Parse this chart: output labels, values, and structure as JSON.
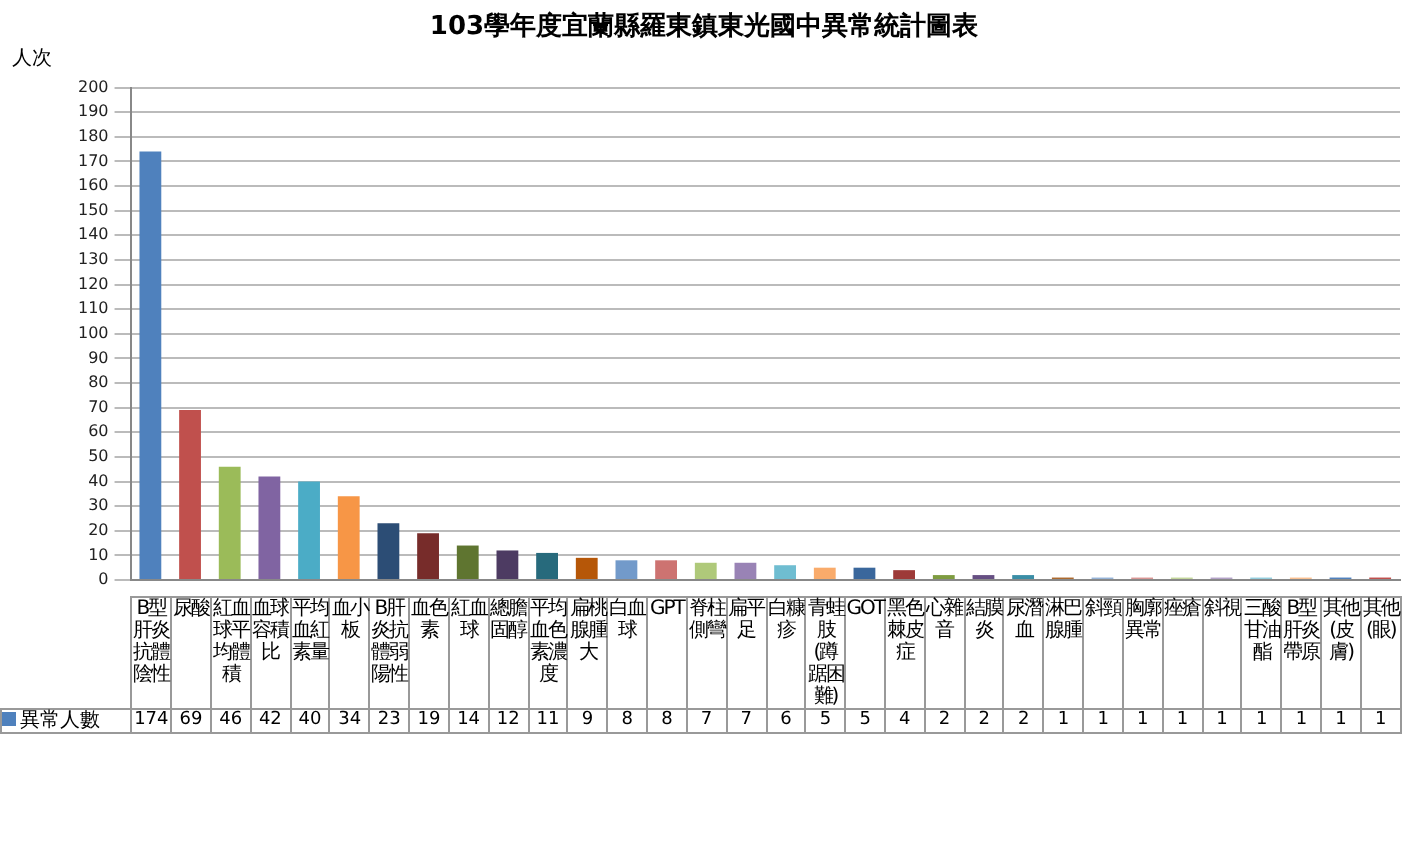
{
  "chart_data": {
    "type": "bar",
    "title": "103學年度宜蘭縣羅東鎮東光國中異常統計圖表",
    "ylabel": "人次",
    "categories": [
      "B型肝炎抗體陰性",
      "尿酸",
      "紅血球平均體積",
      "血球容積比",
      "平均血紅素量",
      "血小板",
      "B肝炎抗體弱陽性",
      "血色素",
      "紅血球",
      "總膽固醇",
      "平均血色素濃度",
      "扁桃腺腫大",
      "白血球",
      "GPT",
      "脊柱側彎",
      "扁平足",
      "白糠疹",
      "青蛙肢(蹲踞困難)",
      "GOT",
      "黑色棘皮症",
      "心雜音",
      "結膜炎",
      "尿潛血",
      "淋巴腺腫",
      "斜頸",
      "胸廓異常",
      "痤瘡",
      "斜視",
      "三酸甘油酯",
      "B型肝炎帶原",
      "其他(皮膚)",
      "其他(眼)"
    ],
    "series": [
      {
        "name": "異常人數",
        "color": "#4f81bd",
        "values": [
          174,
          69,
          46,
          42,
          40,
          34,
          23,
          19,
          14,
          12,
          11,
          9,
          8,
          8,
          7,
          7,
          6,
          5,
          5,
          4,
          2,
          2,
          2,
          1,
          1,
          1,
          1,
          1,
          1,
          1,
          1,
          1
        ],
        "colors": [
          "#4f81bd",
          "#c0504d",
          "#9bbb59",
          "#8064a2",
          "#4bacc6",
          "#f79646",
          "#2c4d75",
          "#772c2a",
          "#5f7530",
          "#4d3b62",
          "#276a7c",
          "#b65708",
          "#729aca",
          "#cd7371",
          "#afc97a",
          "#9983b5",
          "#6fbdd1",
          "#f9ab6b",
          "#3a679c",
          "#9d3a38",
          "#7e9c40",
          "#664f83",
          "#3a8ea6",
          "#ad6a2e",
          "#95b3d7",
          "#d99694",
          "#c3d69b",
          "#b3a2c7",
          "#93cddd",
          "#fac090",
          "#4f81bd",
          "#c0504d"
        ]
      }
    ],
    "ylim": [
      0,
      200
    ],
    "yticks": [
      0,
      10,
      20,
      30,
      40,
      50,
      60,
      70,
      80,
      90,
      100,
      110,
      120,
      130,
      140,
      150,
      160,
      170,
      180,
      190,
      200
    ],
    "grid": "y",
    "legend": "bottom",
    "data_labels": true
  }
}
